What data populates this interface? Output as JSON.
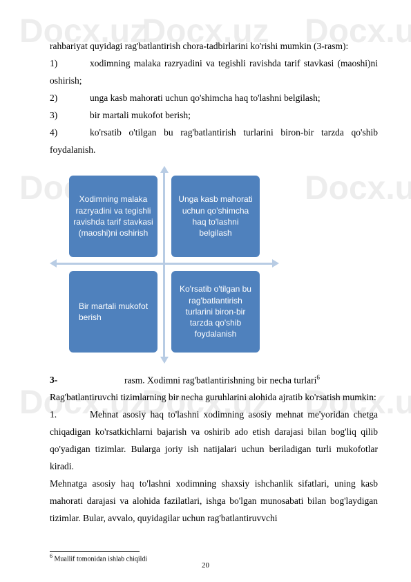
{
  "watermark": "Docx.uz",
  "intro": "rahbariyat quyidagi rag'batlantirish chora-tadbirlarini ko'rishi mumkin (3-rasm):",
  "list": {
    "i1n": "1)",
    "i1": "xodimning malaka razryadini va tegishli ravishda tarif stavkasi (maoshi)ni oshirish;",
    "i2n": "2)",
    "i2": "unga kasb mahorati uchun qo'shimcha haq to'lashni belgilash;",
    "i3n": "3)",
    "i3": "bir martali mukofot berish;",
    "i4n": "4)",
    "i4": "ko'rsatib o'tilgan bu rag'batlantirish turlarini biron-bir tarzda qo'shib foydalanish."
  },
  "diagram": {
    "box_tl": "Xodimning malaka razryadini va tegishli ravishda tarif stavkasi (maoshi)ni oshirish",
    "box_tr": "Unga kasb mahorati uchun qo'shimcha haq to'lashni belgilash",
    "box_bl": "Bir martali mukofot berish",
    "box_br": "Ko'rsatib o'tilgan bu rag'batlantirish turlarini biron-bir tarzda qo'shib foydalanish",
    "box_color": "#4f81bd",
    "axis_color": "#b8cce4"
  },
  "caption": {
    "num": "3-",
    "text": "rasm. Xodimni rag'batlantirishning bir necha turlari",
    "ref": "6"
  },
  "body1": "Rag'batlantiruvchi tizimlarning bir necha guruhlarini alohida ajratib ko'rsatish mumkin:",
  "body2n": "1.",
  "body2": "Mehnat asosiy haq to'lashni xodimning asosiy mehnat me'yoridan chetga chiqadigan ko'rsatkichlarni bajarish va oshirib ado etish darajasi bilan bog'liq qilib qo'yadigan tizimlar. Bularga joriy ish natijalari uchun beriladigan turli mukofotlar kiradi.",
  "body3": "Mehnatga asosiy haq to'lashni xodimning shaxsiy ishchanlik sifatlari, uning kasb mahorati darajasi va alohida fazilatlari, ishga bo'lgan munosabati bilan bog'laydigan tizimlar. Bular, avvalo, quyidagilar uchun rag'batlantiruvvchi",
  "footnote": {
    "num": "6",
    "text": " Muallif tomonidan ishlab chiqildi"
  },
  "page": "20"
}
